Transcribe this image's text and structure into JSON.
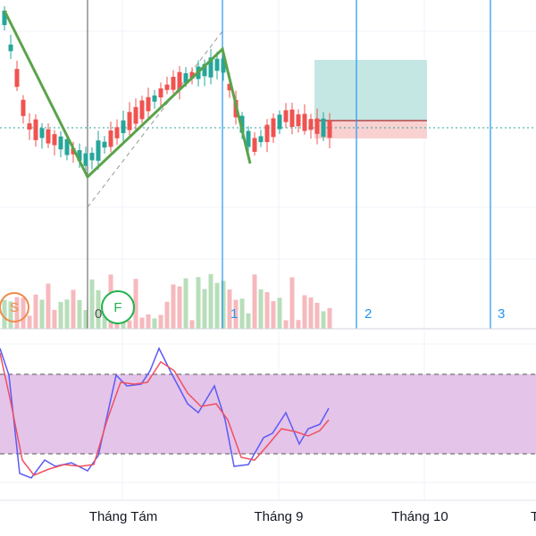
{
  "pattern_labels": {
    "start": "S",
    "finish": "F"
  },
  "wave_labels": [
    "0",
    "1",
    "2",
    "3"
  ],
  "time_axis": [
    "Tháng Tám",
    "Tháng 9",
    "Tháng 10",
    "T"
  ]
}
